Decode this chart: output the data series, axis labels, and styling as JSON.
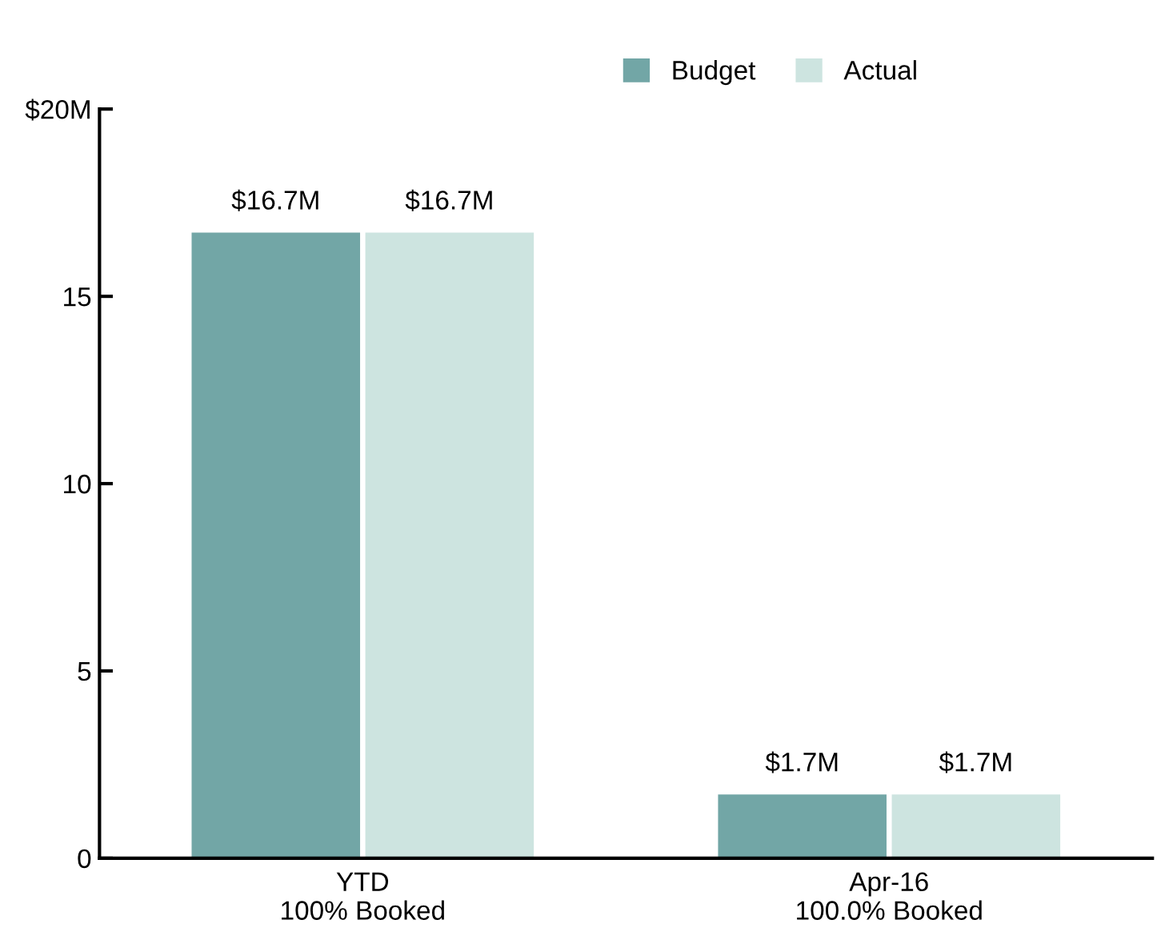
{
  "chart_data": {
    "type": "bar",
    "categories": [
      "YTD\n100% Booked",
      "Apr-16\n100.0% Booked"
    ],
    "series": [
      {
        "name": "Budget",
        "color": "#72a6a6",
        "values": [
          16.7,
          1.7
        ],
        "value_labels": [
          "$16.7M",
          "$1.7M"
        ]
      },
      {
        "name": "Actual",
        "color": "#cde4e0",
        "values": [
          16.7,
          1.7
        ],
        "value_labels": [
          "$16.7M",
          "$1.7M"
        ]
      }
    ],
    "ylim": [
      0,
      20
    ],
    "yticks": [
      0,
      5,
      10,
      15,
      {
        "value": 20,
        "label": "$20M"
      }
    ],
    "grid": false,
    "legend": "top right"
  }
}
